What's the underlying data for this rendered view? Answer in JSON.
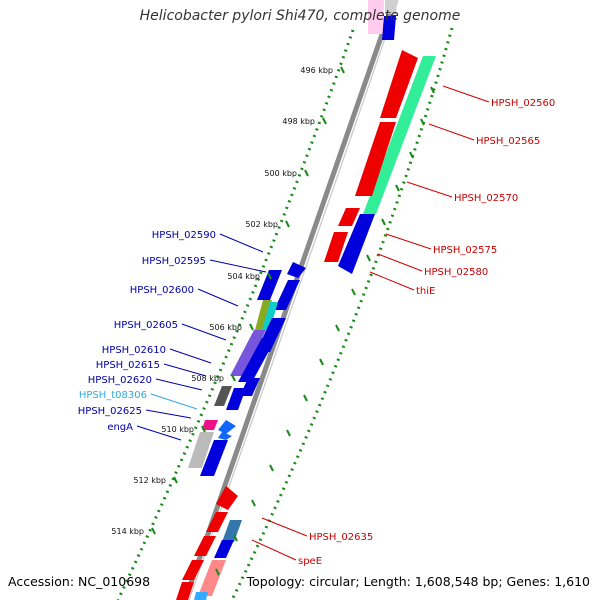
{
  "title": "Helicobacter pylori Shi470, complete genome",
  "accession": "Accession: NC_010698",
  "topology": "Topology: circular; Length: 1,608,548 bp; Genes: 1,610",
  "colors": {
    "backbone": "#8a8a8a",
    "dots": "#1a8a1a",
    "forward_label": "#cc0000",
    "reverse_label": "#0000aa",
    "trna_label": "#33aadd"
  },
  "ticks": [
    {
      "label": "496 kbp"
    },
    {
      "label": "498 kbp"
    },
    {
      "label": "500 kbp"
    },
    {
      "label": "502 kbp"
    },
    {
      "label": "504 kbp"
    },
    {
      "label": "506 kbp"
    },
    {
      "label": "508 kbp"
    },
    {
      "label": "510 kbp"
    },
    {
      "label": "512 kbp"
    },
    {
      "label": "514 kbp"
    }
  ],
  "right_labels": [
    {
      "name": "HPSH_02560"
    },
    {
      "name": "HPSH_02565"
    },
    {
      "name": "HPSH_02570"
    },
    {
      "name": "HPSH_02575"
    },
    {
      "name": "HPSH_02580"
    },
    {
      "name": "thiE"
    },
    {
      "name": "HPSH_02635"
    },
    {
      "name": "speE"
    }
  ],
  "left_labels": [
    {
      "name": "HPSH_02590"
    },
    {
      "name": "HPSH_02595"
    },
    {
      "name": "HPSH_02600"
    },
    {
      "name": "HPSH_02605"
    },
    {
      "name": "HPSH_02610"
    },
    {
      "name": "HPSH_02615"
    },
    {
      "name": "HPSH_02620"
    },
    {
      "name": "HPSH_t08306"
    },
    {
      "name": "HPSH_02625"
    },
    {
      "name": "engA"
    }
  ]
}
